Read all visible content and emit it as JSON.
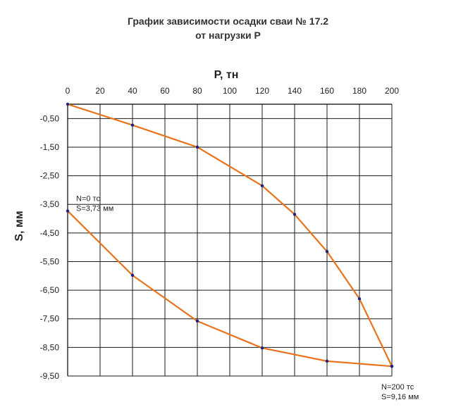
{
  "chart_data": {
    "type": "line",
    "title": [
      "График зависимости осадки сваи № 17.2",
      "от нагрузки Р"
    ],
    "xlabel": "Р, тн",
    "ylabel": "S, мм",
    "x_ticks": [
      0,
      20,
      40,
      60,
      80,
      100,
      120,
      140,
      160,
      180,
      200
    ],
    "y_ticks": [
      -0.5,
      -1.5,
      -2.5,
      -3.5,
      -4.5,
      -5.5,
      -6.5,
      -7.5,
      -8.5,
      -9.5
    ],
    "y_tick_labels": [
      "-0,50",
      "-1,50",
      "-2,50",
      "-3,50",
      "-4,50",
      "-5,50",
      "-6,50",
      "-7,50",
      "-8,50",
      "-9,50"
    ],
    "xlim": [
      0,
      200
    ],
    "ylim": [
      -9.5,
      0
    ],
    "x_axis_position": "top",
    "grid": true,
    "series": [
      {
        "color": "#e8731c",
        "marker_color": "#1a237e",
        "points": [
          [
            0,
            0
          ],
          [
            40,
            -0.73
          ],
          [
            80,
            -1.5
          ],
          [
            120,
            -2.85
          ],
          [
            140,
            -3.85
          ],
          [
            160,
            -5.15
          ],
          [
            180,
            -6.8
          ],
          [
            200,
            -9.16
          ]
        ]
      },
      {
        "color": "#e8731c",
        "marker_color": "#1a237e",
        "points": [
          [
            200,
            -9.16
          ],
          [
            160,
            -8.98
          ],
          [
            120,
            -8.52
          ],
          [
            80,
            -7.58
          ],
          [
            40,
            -5.98
          ],
          [
            0,
            -3.73
          ]
        ]
      }
    ],
    "annotations": [
      {
        "lines": [
          "N=0 тс",
          "S=3,73 мм"
        ],
        "anchor": [
          0,
          -3.73
        ]
      },
      {
        "lines": [
          "N=200 тс",
          "S=9,16 мм"
        ],
        "anchor": [
          200,
          -9.16
        ]
      }
    ]
  }
}
